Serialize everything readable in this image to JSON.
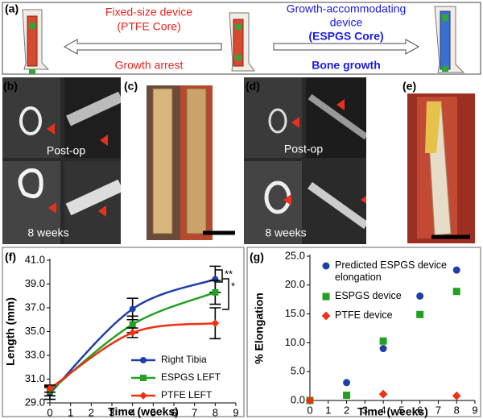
{
  "panel_labels": [
    "(a)",
    "(b)",
    "(c)",
    "(d)",
    "(e)",
    "(f)",
    "(g)"
  ],
  "panel_a": {
    "left": {
      "lines": [
        "Fixed-size device",
        "(PTFE Core)"
      ],
      "caption": "Growth arrest"
    },
    "right": {
      "lines": [
        "Growth-accommodating",
        "device",
        "(ESPGS Core)"
      ],
      "caption": "Bone growth"
    }
  },
  "photo_labels": {
    "b": [
      "Post-op",
      "8 weeks"
    ],
    "d": [
      "Post-op",
      "8 weeks"
    ]
  },
  "chart_data": [
    {
      "type": "line",
      "x_label": "Time (weeks)",
      "y_label": "Length (mm)",
      "xlim": [
        0,
        9
      ],
      "xticks": [
        0,
        1,
        2,
        3,
        4,
        5,
        6,
        7,
        8,
        9
      ],
      "ylim": [
        29,
        41
      ],
      "yticks": [
        {
          "value": 29,
          "label": "29.0"
        },
        {
          "value": 31,
          "label": "31.0"
        },
        {
          "value": 33,
          "label": "33.0"
        },
        {
          "value": 35,
          "label": "35.0"
        },
        {
          "value": 37,
          "label": "37.0"
        },
        {
          "value": 39,
          "label": "39.0"
        },
        {
          "value": 41,
          "label": "41.0"
        }
      ],
      "annotations": [
        "**",
        "*"
      ],
      "series": [
        {
          "name": "Right Tibia",
          "color": "#1f3fa8",
          "marker": "circle",
          "x": [
            0,
            4,
            8
          ],
          "values": [
            29.8,
            36.9,
            39.4
          ],
          "errors": [
            0.5,
            0.9,
            1.1
          ]
        },
        {
          "name": "ESPGS LEFT",
          "color": "#22a022",
          "marker": "square",
          "x": [
            0,
            4,
            8
          ],
          "values": [
            30.0,
            35.6,
            38.3
          ],
          "errors": [
            0.4,
            0.7,
            1.0
          ]
        },
        {
          "name": "PTFE LEFT",
          "color": "#f03010",
          "marker": "diamond",
          "x": [
            0,
            4,
            8
          ],
          "values": [
            30.2,
            34.9,
            35.7
          ],
          "errors": [
            0.3,
            0.4,
            1.3
          ]
        }
      ]
    },
    {
      "type": "scatter",
      "x_label": "Time (weeks)",
      "y_label": "% Elongation",
      "xlim": [
        0,
        9
      ],
      "xticks": [
        0,
        1,
        2,
        3,
        4,
        5,
        6,
        7,
        8,
        9
      ],
      "ylim": [
        0,
        25
      ],
      "yticks": [
        {
          "value": 0,
          "label": "0.0"
        },
        {
          "value": 5,
          "label": "5.0"
        },
        {
          "value": 10,
          "label": "10.0"
        },
        {
          "value": 15,
          "label": "15.0"
        },
        {
          "value": 20,
          "label": "20.0"
        },
        {
          "value": 25,
          "label": "25.0"
        }
      ],
      "series": [
        {
          "name": "Predicted ESPGS device elongation",
          "color": "#1f3fa8",
          "marker": "circle",
          "x": [
            0,
            2,
            4,
            6,
            8
          ],
          "values": [
            0,
            3.1,
            9.0,
            18.1,
            22.6
          ]
        },
        {
          "name": "ESPGS device",
          "color": "#22a022",
          "marker": "square",
          "x": [
            0,
            2,
            4,
            6,
            8
          ],
          "values": [
            0,
            0.9,
            10.3,
            14.9,
            18.9
          ]
        },
        {
          "name": "PTFE device",
          "color": "#f03010",
          "marker": "diamond",
          "x": [
            0,
            4,
            8
          ],
          "values": [
            0,
            1.1,
            0.8
          ]
        }
      ]
    }
  ]
}
